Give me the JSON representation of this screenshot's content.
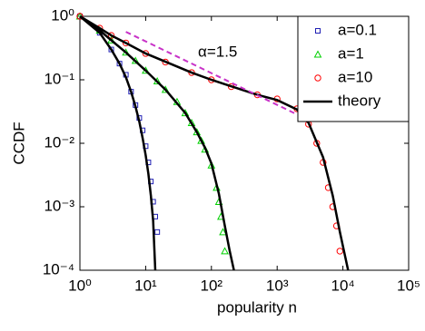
{
  "chart_data": {
    "type": "scatter",
    "xlabel": "popularity n",
    "ylabel": "CCDF",
    "log_x": true,
    "log_y": true,
    "xlim": [
      1,
      100000
    ],
    "ylim": [
      0.0001,
      1
    ],
    "xticks": [
      {
        "value": 1,
        "label": "10⁰"
      },
      {
        "value": 10,
        "label": "10¹"
      },
      {
        "value": 100,
        "label": "10²"
      },
      {
        "value": 1000,
        "label": "10³"
      },
      {
        "value": 10000,
        "label": "10⁴"
      },
      {
        "value": 100000,
        "label": "10⁵"
      }
    ],
    "yticks": [
      {
        "value": 0.0001,
        "label": "10⁻⁴"
      },
      {
        "value": 0.001,
        "label": "10⁻³"
      },
      {
        "value": 0.01,
        "label": "10⁻²"
      },
      {
        "value": 0.1,
        "label": "10⁻¹"
      },
      {
        "value": 1,
        "label": "10⁰"
      }
    ],
    "legend": "upper right",
    "series": [
      {
        "name": "a=0.1",
        "color": "#1f1fb4",
        "marker": "square",
        "x": [
          1,
          2,
          3,
          4,
          5,
          6,
          7,
          8,
          9,
          10,
          11,
          12,
          13,
          14,
          15
        ],
        "values": [
          1,
          0.55,
          0.3,
          0.18,
          0.12,
          0.065,
          0.04,
          0.025,
          0.016,
          0.009,
          0.005,
          0.0025,
          0.0012,
          0.0007,
          0.0004
        ]
      },
      {
        "name": "a=1",
        "color": "#00d000",
        "marker": "triangle",
        "x": [
          1,
          2,
          3,
          5,
          7,
          10,
          15,
          20,
          30,
          40,
          50,
          60,
          70,
          80,
          100,
          120,
          130,
          140,
          150,
          160
        ],
        "values": [
          1,
          0.6,
          0.42,
          0.27,
          0.2,
          0.14,
          0.095,
          0.07,
          0.045,
          0.03,
          0.021,
          0.015,
          0.011,
          0.008,
          0.0045,
          0.002,
          0.0012,
          0.0007,
          0.0004,
          0.0002
        ]
      },
      {
        "name": "a=10",
        "color": "#ff0000",
        "marker": "circle",
        "x": [
          1,
          2,
          3,
          5,
          10,
          20,
          50,
          100,
          200,
          500,
          1000,
          2000,
          3000,
          4000,
          5000,
          6000,
          7000,
          8000,
          9000
        ],
        "values": [
          1,
          0.65,
          0.5,
          0.38,
          0.26,
          0.19,
          0.13,
          0.1,
          0.078,
          0.058,
          0.05,
          0.035,
          0.02,
          0.01,
          0.005,
          0.002,
          0.001,
          0.0005,
          0.0002
        ]
      }
    ],
    "lines": [
      {
        "name": "theory",
        "color": "#000000",
        "curves": [
          {
            "x": [
              1,
              2,
              3,
              4,
              5,
              6,
              7,
              8,
              9,
              10,
              11,
              12,
              13,
              14
            ],
            "values": [
              1,
              0.55,
              0.3,
              0.18,
              0.11,
              0.065,
              0.038,
              0.022,
              0.012,
              0.0065,
              0.0033,
              0.0015,
              0.0006,
              0.0001
            ]
          },
          {
            "x": [
              1,
              2,
              3,
              5,
              10,
              20,
              40,
              60,
              80,
              100,
              130,
              160,
              190,
              220
            ],
            "values": [
              1,
              0.6,
              0.42,
              0.27,
              0.14,
              0.07,
              0.03,
              0.015,
              0.0085,
              0.0048,
              0.0016,
              0.0005,
              0.0002,
              0.0001
            ]
          },
          {
            "x": [
              1,
              2,
              3,
              5,
              10,
              50,
              100,
              500,
              1000,
              2000,
              3000,
              5000,
              7000,
              9000,
              12000
            ],
            "values": [
              1,
              0.65,
              0.5,
              0.38,
              0.26,
              0.13,
              0.1,
              0.058,
              0.048,
              0.034,
              0.021,
              0.006,
              0.0015,
              0.0004,
              0.0001
            ]
          }
        ]
      }
    ],
    "annotation": {
      "text": "α=1.5",
      "x": [
        5,
        2000
      ],
      "values": [
        0.57,
        0.0285
      ],
      "color": "#c832c8"
    }
  }
}
